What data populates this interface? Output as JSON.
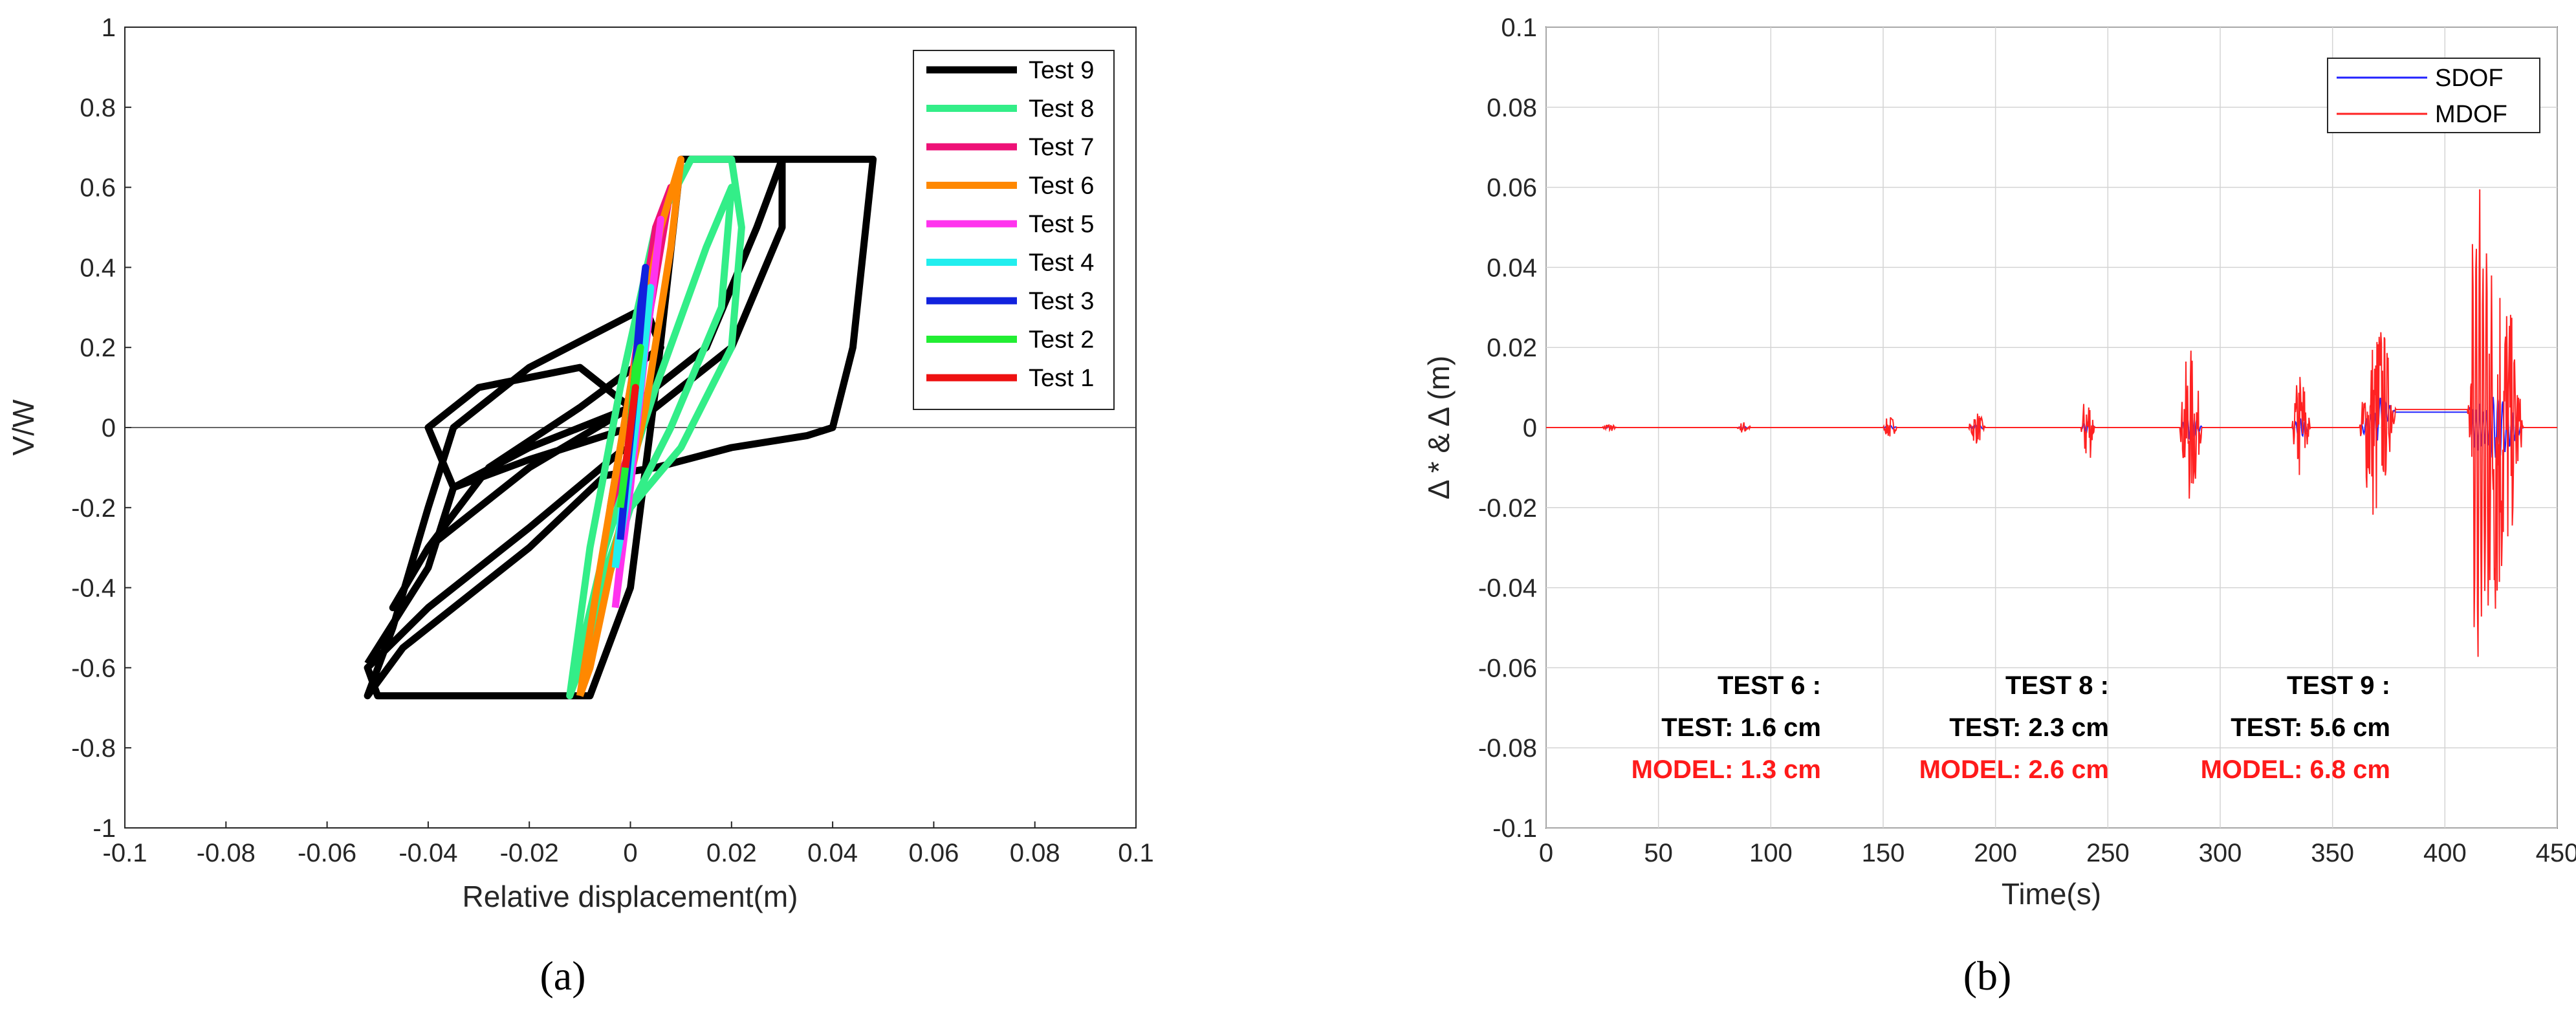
{
  "chart_data": [
    {
      "type": "line",
      "panel_label": "(a)",
      "xlabel": "Relative displacement(m)",
      "ylabel": "V/W",
      "xlim": [
        -0.1,
        0.1
      ],
      "ylim": [
        -1,
        1
      ],
      "xticks": [
        "-0.1",
        "-0.08",
        "-0.06",
        "-0.04",
        "-0.02",
        "0",
        "0.02",
        "0.04",
        "0.06",
        "0.08",
        "0.1"
      ],
      "yticks": [
        "-1",
        "-0.8",
        "-0.6",
        "-0.4",
        "-0.2",
        "0",
        "0.2",
        "0.4",
        "0.6",
        "0.8",
        "1"
      ],
      "zero_line": true,
      "legend_position": "top-right",
      "series": [
        {
          "name": "Test 9",
          "color": "#000000",
          "x": [
            -0.001,
            -0.02,
            -0.04,
            -0.052,
            -0.05,
            -0.045,
            -0.035,
            -0.02,
            -0.008,
            0.0,
            0.005,
            0.01,
            0.02,
            0.048,
            0.044,
            0.04,
            0.035,
            0.02,
            0.005,
            -0.005,
            -0.02,
            -0.035,
            -0.045,
            -0.052,
            -0.047,
            -0.04,
            -0.035,
            -0.02,
            0.003,
            0.006,
            -0.01,
            -0.028,
            -0.04,
            -0.047,
            -0.04,
            -0.02,
            0.0,
            0.015,
            0.025,
            0.03,
            0.03,
            0.02,
            0.0,
            -0.02,
            -0.035,
            -0.04,
            -0.03,
            -0.01,
            0.0,
            -0.02,
            -0.035,
            -0.04,
            -0.052
          ],
          "y": [
            -0.05,
            -0.25,
            -0.45,
            -0.6,
            -0.67,
            -0.67,
            -0.67,
            -0.67,
            -0.67,
            -0.4,
            0.1,
            0.67,
            0.67,
            0.67,
            0.2,
            0.0,
            -0.02,
            -0.05,
            -0.1,
            -0.12,
            -0.3,
            -0.45,
            -0.55,
            -0.67,
            -0.5,
            -0.2,
            0.0,
            0.15,
            0.3,
            0.2,
            0.05,
            -0.1,
            -0.3,
            -0.45,
            -0.3,
            -0.1,
            0.05,
            0.2,
            0.5,
            0.67,
            0.5,
            0.2,
            0.0,
            -0.08,
            -0.15,
            0.0,
            0.1,
            0.15,
            0.05,
            -0.05,
            -0.15,
            -0.35,
            -0.59
          ]
        },
        {
          "name": "Test 8",
          "color": "#33ee88",
          "x": [
            -0.012,
            -0.008,
            -0.002,
            0.005,
            0.012,
            0.02,
            0.022,
            0.02,
            0.01,
            0.0,
            -0.005,
            -0.01,
            -0.012,
            -0.005,
            0.005,
            0.015,
            0.02,
            0.018,
            0.008,
            -0.002,
            -0.01,
            -0.012
          ],
          "y": [
            -0.67,
            -0.3,
            0.1,
            0.5,
            0.67,
            0.67,
            0.5,
            0.2,
            -0.05,
            -0.2,
            -0.4,
            -0.6,
            -0.67,
            -0.3,
            0.1,
            0.45,
            0.6,
            0.3,
            0.0,
            -0.25,
            -0.55,
            -0.67
          ]
        },
        {
          "name": "Test 7",
          "color": "#ee1177",
          "x": [
            -0.004,
            0.0,
            0.005,
            0.008,
            0.004,
            0.0,
            -0.004
          ],
          "y": [
            -0.2,
            0.1,
            0.5,
            0.6,
            0.3,
            -0.05,
            -0.2
          ]
        },
        {
          "name": "Test 6",
          "color": "#ff8800",
          "x": [
            -0.01,
            -0.006,
            0.0,
            0.006,
            0.01,
            0.008,
            0.003,
            -0.003,
            -0.008,
            -0.01
          ],
          "y": [
            -0.67,
            -0.35,
            0.1,
            0.5,
            0.67,
            0.45,
            0.05,
            -0.3,
            -0.6,
            -0.67
          ]
        },
        {
          "name": "Test 5",
          "color": "#ff33ee",
          "x": [
            -0.003,
            0.0,
            0.004,
            0.006,
            0.003,
            0.0,
            -0.003
          ],
          "y": [
            -0.45,
            -0.1,
            0.3,
            0.52,
            0.2,
            -0.15,
            -0.45
          ]
        },
        {
          "name": "Test 4",
          "color": "#22eeee",
          "x": [
            -0.003,
            0.0,
            0.003,
            0.004,
            0.002,
            -0.001,
            -0.003
          ],
          "y": [
            -0.35,
            0.0,
            0.3,
            0.35,
            0.1,
            -0.2,
            -0.35
          ]
        },
        {
          "name": "Test 3",
          "color": "#1122dd",
          "x": [
            -0.002,
            0.0,
            0.002,
            0.003,
            0.001,
            -0.001,
            -0.002
          ],
          "y": [
            -0.28,
            0.0,
            0.3,
            0.4,
            0.1,
            -0.15,
            -0.28
          ]
        },
        {
          "name": "Test 2",
          "color": "#22ee33",
          "x": [
            -0.002,
            0.0,
            0.001,
            0.002,
            0.0,
            -0.002
          ],
          "y": [
            -0.2,
            0.0,
            0.15,
            0.2,
            0.0,
            -0.2
          ]
        },
        {
          "name": "Test 1",
          "color": "#ee1111",
          "x": [
            -0.001,
            0.0,
            0.001,
            0.0,
            -0.001
          ],
          "y": [
            -0.1,
            0.0,
            0.1,
            0.0,
            -0.1
          ]
        }
      ]
    },
    {
      "type": "line",
      "panel_label": "(b)",
      "xlabel": "Time(s)",
      "ylabel": "Δ * & Δ (m)",
      "xlim": [
        0,
        450
      ],
      "ylim": [
        -0.1,
        0.1
      ],
      "xticks": [
        "0",
        "50",
        "100",
        "150",
        "200",
        "250",
        "300",
        "350",
        "400",
        "450"
      ],
      "yticks": [
        "-0.1",
        "-0.08",
        "-0.06",
        "-0.04",
        "-0.02",
        "0",
        "0.02",
        "0.04",
        "0.06",
        "0.08",
        "0.1"
      ],
      "grid": true,
      "legend_position": "top-right",
      "series": [
        {
          "name": "SDOF",
          "color": "#2222ff"
        },
        {
          "name": "MDOF",
          "color": "#ff2222"
        }
      ],
      "bursts": [
        {
          "t_start": 25,
          "t_end": 35,
          "amp": 0.0007
        },
        {
          "t_start": 85,
          "t_end": 95,
          "amp": 0.0009
        },
        {
          "t_start": 150,
          "t_end": 160,
          "amp": 0.0018
        },
        {
          "t_start": 188,
          "t_end": 200,
          "amp": 0.0025
        },
        {
          "t_start": 238,
          "t_end": 248,
          "amp": 0.006
        },
        {
          "t_start": 282,
          "t_end": 298,
          "amp": 0.012
        },
        {
          "t_start": 332,
          "t_end": 345,
          "amp": 0.009
        },
        {
          "t_start": 362,
          "t_end": 388,
          "amp": 0.015
        },
        {
          "t_start": 410,
          "t_end": 450,
          "amp": 0.03
        }
      ],
      "peaks": {
        "max": 0.063,
        "min": -0.068,
        "drift_end": 0.0045
      },
      "annotations": [
        {
          "title": "TEST 6 :",
          "test": "TEST: 1.6 cm",
          "model": "MODEL: 1.3 cm"
        },
        {
          "title": "TEST 8 :",
          "test": "TEST: 2.3 cm",
          "model": "MODEL: 2.6 cm"
        },
        {
          "title": "TEST 9 :",
          "test": "TEST: 5.6 cm",
          "model": "MODEL: 6.8 cm"
        }
      ]
    }
  ]
}
